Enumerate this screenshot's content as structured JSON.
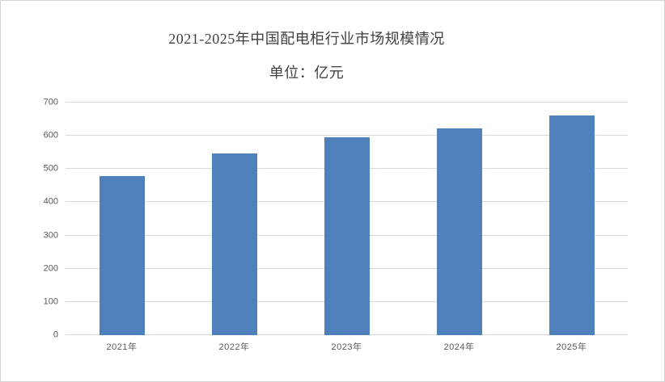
{
  "chart_data": {
    "type": "bar",
    "title": "2021-2025年中国配电柜行业市场规模情况",
    "subtitle": "单位：亿元",
    "unit": "亿元",
    "categories": [
      "2021年",
      "2022年",
      "2023年",
      "2024年",
      "2025年"
    ],
    "values": [
      478,
      548,
      596,
      622,
      660
    ],
    "ylim": [
      0,
      700
    ],
    "yticks": [
      0,
      100,
      200,
      300,
      400,
      500,
      600,
      700
    ],
    "grid": true,
    "legend": "none",
    "colors": {
      "bar": "#4e80bc",
      "gridline": "#d9d9d9",
      "tick_label": "#595959",
      "title": "#3f3f3f",
      "page_border": "#d4d4d4"
    }
  }
}
